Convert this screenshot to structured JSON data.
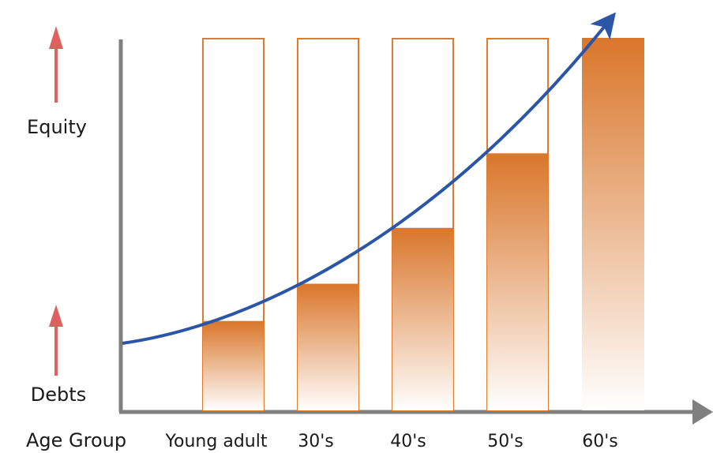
{
  "chart_data": {
    "type": "bar",
    "categories": [
      "Young adult",
      "30's",
      "40's",
      "50's",
      "60's"
    ],
    "values": [
      0.24,
      0.34,
      0.49,
      0.69,
      1.0
    ],
    "capacity": 1.0,
    "ylim": [
      0,
      1
    ],
    "trend": "rising curve",
    "title": "",
    "xlabel": "Age Group",
    "ylabel": "",
    "grid": false,
    "legend": "none",
    "y_markers": [
      {
        "label": "Equity"
      },
      {
        "label": "Debts"
      }
    ],
    "colors": {
      "bar_outline": "#e07a2e",
      "bar_fill_top": "#d9762a",
      "bar_fill_bottom": "#ffffff",
      "trend": "#2b56a8",
      "axis": "#808080",
      "marker_arrow": "#e06060"
    }
  }
}
